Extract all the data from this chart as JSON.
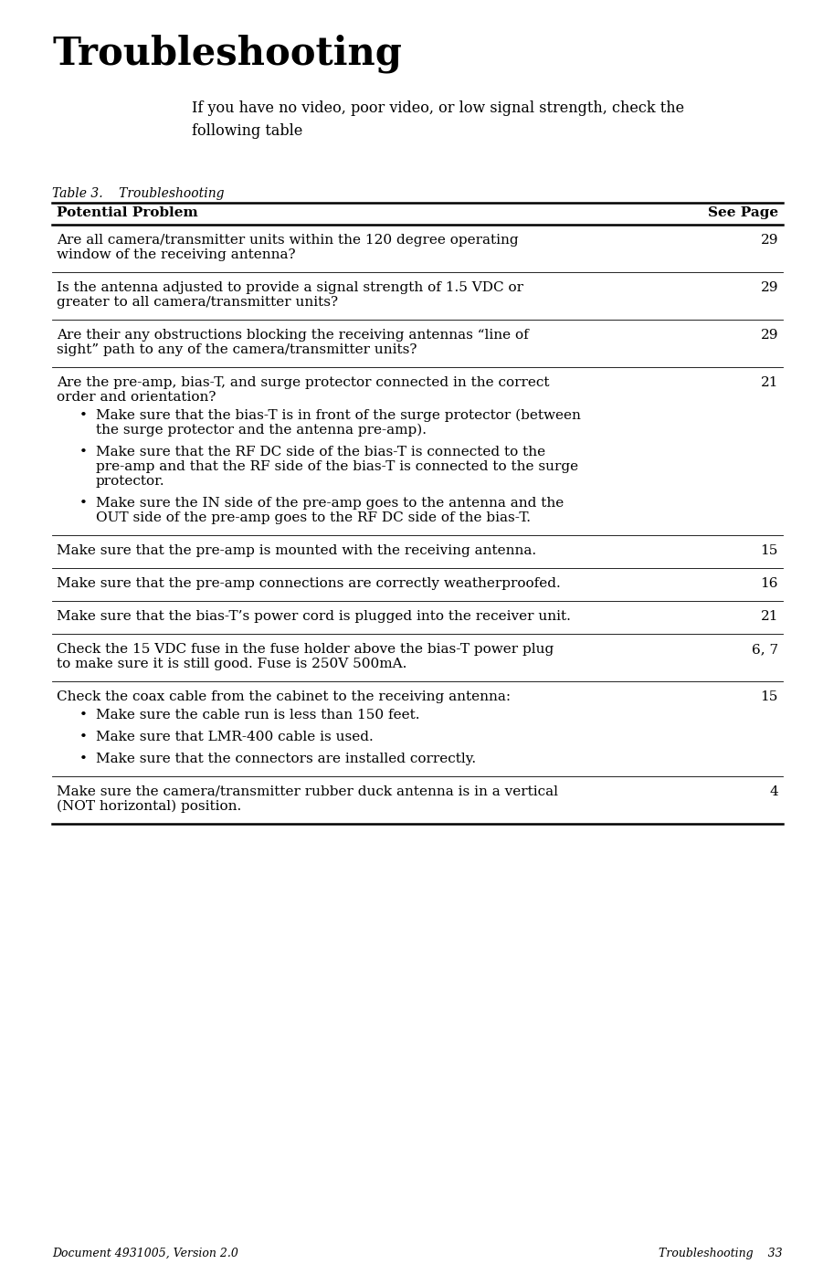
{
  "title": "Troubleshooting",
  "subtitle": "If you have no video, poor video, or low signal strength, check the\nfollowing table",
  "table_label": "Table 3.    Troubleshooting",
  "header_col1": "Potential Problem",
  "header_col2": "See Page",
  "footer_left": "Document 4931005, Version 2.0",
  "footer_right": "Troubleshooting    33",
  "rows": [
    {
      "problem": "Are all camera/transmitter units within the 120 degree operating\nwindow of the receiving antenna?",
      "page": "29",
      "bullets": []
    },
    {
      "problem": "Is the antenna adjusted to provide a signal strength of 1.5 VDC or\ngreater to all camera/transmitter units?",
      "page": "29",
      "bullets": []
    },
    {
      "problem": "Are their any obstructions blocking the receiving antennas “line of\nsight” path to any of the camera/transmitter units?",
      "page": "29",
      "bullets": []
    },
    {
      "problem": "Are the pre-amp, bias-T, and surge protector connected in the correct\norder and orientation?",
      "page": "21",
      "bullets": [
        "Make sure that the bias-T is in front of the surge protector (between\nthe surge protector and the antenna pre-amp).",
        "Make sure that the RF DC side of the bias-T is connected to the\npre-amp and that the RF side of the bias-T is connected to the surge\nprotector.",
        "Make sure the IN side of the pre-amp goes to the antenna and the\nOUT side of the pre-amp goes to the RF DC side of the bias-T."
      ]
    },
    {
      "problem": "Make sure that the pre-amp is mounted with the receiving antenna.",
      "page": "15",
      "bullets": []
    },
    {
      "problem": "Make sure that the pre-amp connections are correctly weatherproofed.",
      "page": "16",
      "bullets": []
    },
    {
      "problem": "Make sure that the bias-T’s power cord is plugged into the receiver unit.",
      "page": "21",
      "bullets": []
    },
    {
      "problem": "Check the 15 VDC fuse in the fuse holder above the bias-T power plug\nto make sure it is still good. Fuse is 250V 500mA.",
      "page": "6, 7",
      "bullets": []
    },
    {
      "problem": "Check the coax cable from the cabinet to the receiving antenna:",
      "page": "15",
      "bullets": [
        "Make sure the cable run is less than 150 feet.",
        "Make sure that LMR-400 cable is used.",
        "Make sure that the connectors are installed correctly."
      ]
    },
    {
      "problem": "Make sure the camera/transmitter rubber duck antenna is in a vertical\n(NOT horizontal) position.",
      "page": "4",
      "bullets": []
    }
  ],
  "bg_color": "#ffffff",
  "title_font_size": 30,
  "subtitle_font_size": 11.5,
  "body_font_size": 11,
  "header_font_size": 11,
  "table_label_font_size": 10,
  "footer_font_size": 9
}
